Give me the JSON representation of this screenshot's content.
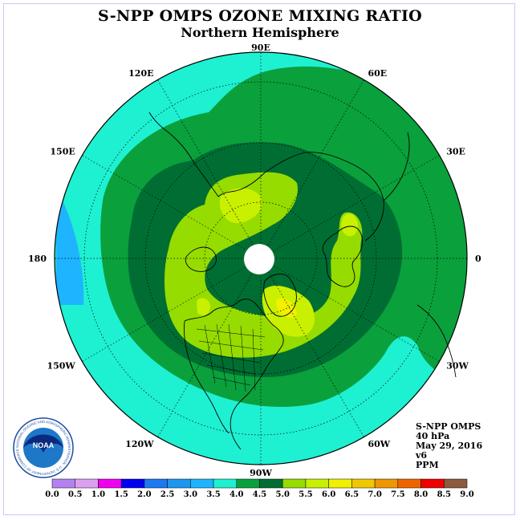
{
  "header": {
    "title": "S-NPP OMPS OZONE MIXING RATIO",
    "subtitle": "Northern Hemisphere"
  },
  "map": {
    "projection": "north-polar-stereographic",
    "longitude_labels": [
      "90E",
      "60E",
      "30E",
      "0",
      "30W",
      "60W",
      "90W",
      "120W",
      "150W",
      "180",
      "150E",
      "120E"
    ],
    "colors": {
      "band_3_5_4_0": "#1ef0d2",
      "band_4_0_4_5": "#0aa03c",
      "band_4_5_5_0": "#006e32",
      "band_5_0_5_5": "#96dc00",
      "band_5_5_6_0": "#c8f000",
      "band_6_0_6_5": "#f0f000",
      "band_3_0_3_5": "#1eb4ff"
    }
  },
  "info": {
    "instrument": "S-NPP OMPS",
    "pressure": "40 hPa",
    "date": "May 29, 2016",
    "version": "v6",
    "units": "PPM"
  },
  "colorbar": {
    "labels": [
      "0.0",
      "0.5",
      "1.0",
      "1.5",
      "2.0",
      "2.5",
      "3.0",
      "3.5",
      "4.0",
      "4.5",
      "5.0",
      "5.5",
      "6.0",
      "6.5",
      "7.0",
      "7.5",
      "8.0",
      "8.5",
      "9.0"
    ],
    "colors": [
      "#b482f0",
      "#dca0f0",
      "#f000f0",
      "#0000f0",
      "#1e78f0",
      "#1e96f0",
      "#1eb4ff",
      "#1ef0d2",
      "#0aa03c",
      "#006e32",
      "#96dc00",
      "#c8f000",
      "#f0f000",
      "#f0c800",
      "#f09600",
      "#f06400",
      "#f00000",
      "#8c5a3c"
    ]
  },
  "logo": {
    "text": "NOAA",
    "ring_text": "NATIONAL OCEANIC AND ATMOSPHERIC ADMINISTRATION · U.S. DEPARTMENT OF COMMERCE"
  }
}
